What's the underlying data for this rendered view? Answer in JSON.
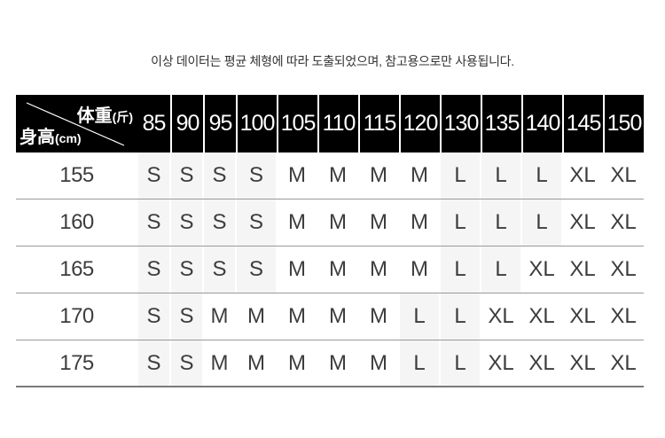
{
  "note": "이상 데이터는 평균 체형에 따라 도출되었으며, 참고용으로만 사용됩니다.",
  "chart_data": {
    "type": "table",
    "corner": {
      "col_axis": "体重",
      "col_unit": "(斤)",
      "row_axis": "身高",
      "row_unit": "(cm)"
    },
    "col_headers": [
      "85",
      "90",
      "95",
      "100",
      "105",
      "110",
      "115",
      "120",
      "130",
      "135",
      "140",
      "145",
      "150"
    ],
    "row_headers": [
      "155",
      "160",
      "165",
      "170",
      "175"
    ],
    "cells": [
      [
        "S",
        "S",
        "S",
        "S",
        "M",
        "M",
        "M",
        "M",
        "L",
        "L",
        "L",
        "XL",
        "XL"
      ],
      [
        "S",
        "S",
        "S",
        "S",
        "M",
        "M",
        "M",
        "M",
        "L",
        "L",
        "L",
        "XL",
        "XL"
      ],
      [
        "S",
        "S",
        "S",
        "S",
        "M",
        "M",
        "M",
        "M",
        "L",
        "L",
        "XL",
        "XL",
        "XL"
      ],
      [
        "S",
        "S",
        "M",
        "M",
        "M",
        "M",
        "M",
        "L",
        "L",
        "XL",
        "XL",
        "XL",
        "XL"
      ],
      [
        "S",
        "S",
        "M",
        "M",
        "M",
        "M",
        "M",
        "L",
        "L",
        "XL",
        "XL",
        "XL",
        "XL"
      ]
    ],
    "shaded_sizes": [
      "S",
      "L"
    ]
  },
  "colors": {
    "header_bg": "#000000",
    "header_text": "#ffffff",
    "body_text": "#3d3d3d",
    "stripe_bg": "#f5f5f6",
    "row_divider": "#999999",
    "bottom_border": "#7a7a7a",
    "note_text": "#333333"
  }
}
